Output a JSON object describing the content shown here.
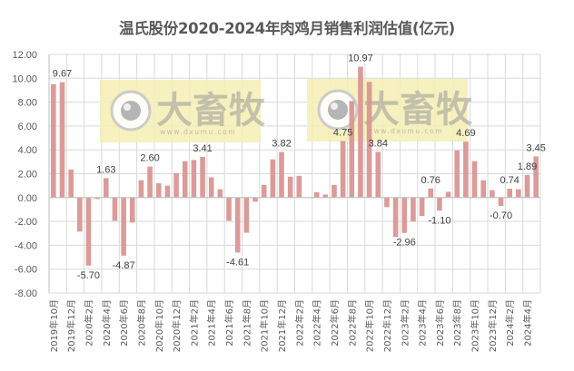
{
  "chart_data": {
    "type": "bar",
    "title": "温氏股份2020-2024年肉鸡月销售利润估值(亿元)",
    "xlabel": "",
    "ylabel": "",
    "ylim": [
      -8,
      12
    ],
    "yticks": [
      "12.00",
      "10.00",
      "8.00",
      "6.00",
      "4.00",
      "2.00",
      "0.00",
      "-2.00",
      "-4.00",
      "-6.00",
      "-8.00"
    ],
    "grid": true,
    "legend": null,
    "bar_color": "#d99694",
    "categories": [
      "2019年10月",
      "2019年11月",
      "2019年12月",
      "2020年1月",
      "2020年2月",
      "2020年3月",
      "2020年4月",
      "2020年5月",
      "2020年6月",
      "2020年7月",
      "2020年8月",
      "2020年9月",
      "2020年10月",
      "2020年11月",
      "2020年12月",
      "2021年1月",
      "2021年2月",
      "2021年3月",
      "2021年4月",
      "2021年5月",
      "2021年6月",
      "2021年7月",
      "2021年8月",
      "2021年9月",
      "2021年10月",
      "2021年11月",
      "2021年12月",
      "2022年1月",
      "2022年2月",
      "2022年3月",
      "2022年4月",
      "2022年5月",
      "2022年6月",
      "2022年7月",
      "2022年8月",
      "2022年9月",
      "2022年10月",
      "2022年11月",
      "2022年12月",
      "2023年1月",
      "2023年2月",
      "2023年3月",
      "2023年4月",
      "2023年5月",
      "2023年6月",
      "2023年7月",
      "2023年8月",
      "2023年9月",
      "2023年10月",
      "2023年11月",
      "2023年12月",
      "2024年1月",
      "2024年2月",
      "2024年3月",
      "2024年4月",
      "2024年5月"
    ],
    "xtick_labels": [
      "2019年10月",
      "2019年12月",
      "2020年2月",
      "2020年4月",
      "2020年6月",
      "2020年8月",
      "2020年10月",
      "2020年12月",
      "2021年2月",
      "2021年4月",
      "2021年6月",
      "2021年8月",
      "2021年10月",
      "2021年12月",
      "2022年2月",
      "2022年4月",
      "2022年6月",
      "2022年8月",
      "2022年10月",
      "2022年12月",
      "2023年2月",
      "2023年4月",
      "2023年6月",
      "2023年8月",
      "2023年10月",
      "2023年12月",
      "2024年2月",
      "2024年4月"
    ],
    "values": [
      9.5,
      9.67,
      2.35,
      -2.85,
      -5.7,
      -0.12,
      1.63,
      -1.95,
      -4.87,
      -2.1,
      1.45,
      2.6,
      1.2,
      1.0,
      2.05,
      3.05,
      3.15,
      3.41,
      1.7,
      0.7,
      -1.95,
      -4.61,
      -2.95,
      -0.35,
      1.06,
      3.2,
      3.82,
      1.75,
      1.82,
      null,
      0.45,
      0.25,
      1.06,
      4.75,
      8.1,
      10.97,
      9.7,
      3.84,
      -0.8,
      -3.3,
      -2.96,
      -2.0,
      -1.55,
      0.76,
      -1.1,
      0.48,
      3.95,
      4.69,
      3.05,
      1.45,
      0.62,
      -0.7,
      0.74,
      0.7,
      1.89,
      3.45
    ],
    "data_labels": [
      {
        "index": 1,
        "text": "9.67"
      },
      {
        "index": 4,
        "text": "-5.70"
      },
      {
        "index": 6,
        "text": "1.63"
      },
      {
        "index": 8,
        "text": "-4.87"
      },
      {
        "index": 11,
        "text": "2.60"
      },
      {
        "index": 17,
        "text": "3.41"
      },
      {
        "index": 21,
        "text": "-4.61"
      },
      {
        "index": 26,
        "text": "3.82"
      },
      {
        "index": 33,
        "text": "4.75"
      },
      {
        "index": 35,
        "text": "10.97"
      },
      {
        "index": 37,
        "text": "3.84"
      },
      {
        "index": 40,
        "text": "-2.96"
      },
      {
        "index": 43,
        "text": "0.76"
      },
      {
        "index": 44,
        "text": "-1.10"
      },
      {
        "index": 47,
        "text": "4.69"
      },
      {
        "index": 51,
        "text": "-0.70"
      },
      {
        "index": 52,
        "text": "0.74"
      },
      {
        "index": 54,
        "text": "1.89"
      },
      {
        "index": 55,
        "text": "3.45"
      }
    ]
  },
  "watermark": {
    "brand_text": "大畜牧",
    "url_text": "www.dxumu.com",
    "box_color": "#f5efb4"
  }
}
